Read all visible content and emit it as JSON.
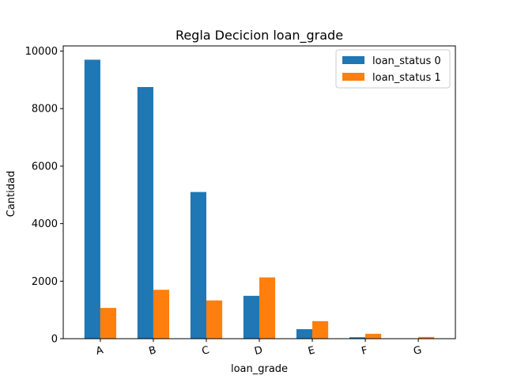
{
  "chart_data": {
    "type": "bar",
    "title": "Regla Decicion loan_grade",
    "xlabel": "loan_grade",
    "ylabel": "Cantidad",
    "categories": [
      "A",
      "B",
      "C",
      "D",
      "E",
      "F",
      "G"
    ],
    "series": [
      {
        "name": "loan_status 0",
        "color": "#1f77b4",
        "values": [
          9700,
          8750,
          5100,
          1490,
          330,
          50,
          0
        ]
      },
      {
        "name": "loan_status 1",
        "color": "#ff7f0e",
        "values": [
          1070,
          1700,
          1330,
          2130,
          610,
          170,
          60
        ]
      }
    ],
    "ylim": [
      0,
      10180
    ],
    "yticks": [
      0,
      2000,
      4000,
      6000,
      8000,
      10000
    ],
    "ytick_labels": [
      "0",
      "2000",
      "4000",
      "6000",
      "8000",
      "10000"
    ],
    "legend_position": "top-right",
    "grid": false
  }
}
